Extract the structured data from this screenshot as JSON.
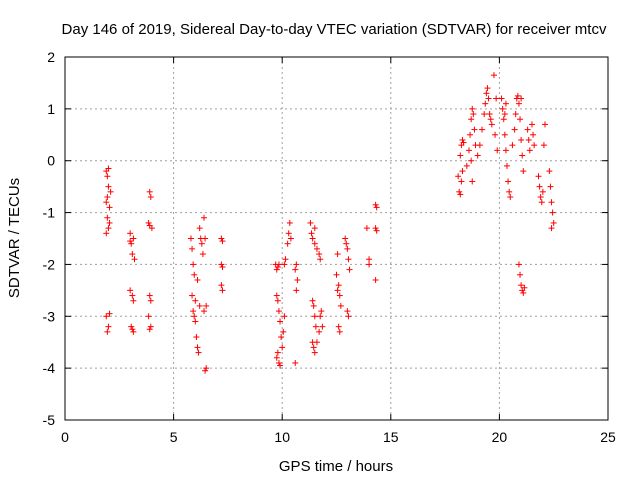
{
  "chart_data": {
    "type": "scatter",
    "title": "Day 146 of 2019, Sidereal Day-to-day VTEC variation (SDTVAR) for receiver mtcv",
    "xlabel": "GPS time / hours",
    "ylabel": "SDTVAR / TECUs",
    "xlim": [
      0,
      25
    ],
    "ylim": [
      -5,
      2
    ],
    "xticks": [
      0,
      5,
      10,
      15,
      20,
      25
    ],
    "yticks": [
      -5,
      -4,
      -3,
      -2,
      -1,
      0,
      1,
      2
    ],
    "grid": true,
    "marker": "+",
    "color": "#ff0000",
    "series": [
      {
        "name": "SDTVAR",
        "points": [
          [
            1.9,
            -0.2
          ],
          [
            1.95,
            -0.3
          ],
          [
            2.0,
            -0.15
          ],
          [
            2.0,
            -0.5
          ],
          [
            1.9,
            -0.8
          ],
          [
            2.05,
            -0.9
          ],
          [
            1.95,
            -1.1
          ],
          [
            2.0,
            -1.3
          ],
          [
            1.9,
            -1.4
          ],
          [
            2.05,
            -1.2
          ],
          [
            2.1,
            -0.6
          ],
          [
            1.95,
            -0.7
          ],
          [
            1.9,
            -3.0
          ],
          [
            2.0,
            -3.2
          ],
          [
            1.95,
            -3.3
          ],
          [
            2.05,
            -2.95
          ],
          [
            3.0,
            -1.4
          ],
          [
            3.05,
            -1.6
          ],
          [
            3.1,
            -1.8
          ],
          [
            3.15,
            -1.5
          ],
          [
            3.2,
            -1.9
          ],
          [
            3.0,
            -1.55
          ],
          [
            3.0,
            -2.5
          ],
          [
            3.1,
            -2.6
          ],
          [
            3.15,
            -2.7
          ],
          [
            3.05,
            -3.2
          ],
          [
            3.15,
            -3.3
          ],
          [
            3.1,
            -3.25
          ],
          [
            3.9,
            -0.6
          ],
          [
            3.95,
            -0.7
          ],
          [
            3.85,
            -1.2
          ],
          [
            4.0,
            -1.3
          ],
          [
            3.9,
            -1.25
          ],
          [
            3.9,
            -2.6
          ],
          [
            3.95,
            -2.7
          ],
          [
            3.85,
            -3.0
          ],
          [
            3.95,
            -3.2
          ],
          [
            3.9,
            -3.25
          ],
          [
            5.8,
            -1.5
          ],
          [
            5.85,
            -1.7
          ],
          [
            5.9,
            -2.0
          ],
          [
            5.95,
            -2.2
          ],
          [
            5.85,
            -2.6
          ],
          [
            5.9,
            -2.9
          ],
          [
            6.0,
            -3.1
          ],
          [
            6.05,
            -3.4
          ],
          [
            6.1,
            -3.6
          ],
          [
            6.15,
            -3.7
          ],
          [
            5.95,
            -3.0
          ],
          [
            6.0,
            -2.7
          ],
          [
            6.2,
            -1.3
          ],
          [
            6.25,
            -1.5
          ],
          [
            6.3,
            -1.6
          ],
          [
            6.35,
            -1.8
          ],
          [
            6.1,
            -2.3
          ],
          [
            6.2,
            -2.8
          ],
          [
            6.4,
            -1.1
          ],
          [
            6.45,
            -1.5
          ],
          [
            6.5,
            -2.8
          ],
          [
            6.4,
            -2.9
          ],
          [
            6.5,
            -4.0
          ],
          [
            6.45,
            -4.05
          ],
          [
            7.2,
            -1.5
          ],
          [
            7.25,
            -1.55
          ],
          [
            7.2,
            -2.0
          ],
          [
            7.25,
            -2.05
          ],
          [
            7.2,
            -2.4
          ],
          [
            7.25,
            -2.5
          ],
          [
            9.7,
            -2.0
          ],
          [
            9.75,
            -2.1
          ],
          [
            9.8,
            -2.05
          ],
          [
            9.85,
            -2.0
          ],
          [
            9.75,
            -2.6
          ],
          [
            9.8,
            -2.7
          ],
          [
            9.85,
            -2.9
          ],
          [
            9.9,
            -3.1
          ],
          [
            9.95,
            -3.4
          ],
          [
            9.8,
            -3.7
          ],
          [
            9.75,
            -3.8
          ],
          [
            9.85,
            -3.9
          ],
          [
            9.9,
            -3.95
          ],
          [
            10.0,
            -3.6
          ],
          [
            10.05,
            -3.3
          ],
          [
            10.1,
            -3.0
          ],
          [
            10.1,
            -2.0
          ],
          [
            10.15,
            -1.9
          ],
          [
            10.25,
            -1.6
          ],
          [
            10.3,
            -1.4
          ],
          [
            10.35,
            -1.2
          ],
          [
            10.4,
            -1.5
          ],
          [
            10.6,
            -2.1
          ],
          [
            10.65,
            -2.0
          ],
          [
            10.7,
            -2.3
          ],
          [
            10.65,
            -2.5
          ],
          [
            10.6,
            -3.9
          ],
          [
            11.3,
            -1.2
          ],
          [
            11.35,
            -1.4
          ],
          [
            11.4,
            -1.5
          ],
          [
            11.5,
            -1.6
          ],
          [
            11.6,
            -1.7
          ],
          [
            11.7,
            -1.8
          ],
          [
            11.75,
            -1.9
          ],
          [
            11.5,
            -1.3
          ],
          [
            11.4,
            -2.7
          ],
          [
            11.45,
            -2.8
          ],
          [
            11.5,
            -3.0
          ],
          [
            11.55,
            -3.2
          ],
          [
            11.4,
            -3.5
          ],
          [
            11.45,
            -3.6
          ],
          [
            11.5,
            -3.7
          ],
          [
            11.6,
            -3.5
          ],
          [
            11.7,
            -3.3
          ],
          [
            11.75,
            -3.0
          ],
          [
            11.8,
            -2.9
          ],
          [
            11.85,
            -3.2
          ],
          [
            12.5,
            -2.2
          ],
          [
            12.55,
            -2.5
          ],
          [
            12.6,
            -2.4
          ],
          [
            12.65,
            -2.6
          ],
          [
            12.7,
            -2.8
          ],
          [
            12.6,
            -3.2
          ],
          [
            12.65,
            -3.3
          ],
          [
            12.55,
            -1.8
          ],
          [
            12.9,
            -1.5
          ],
          [
            12.95,
            -1.6
          ],
          [
            13.0,
            -1.7
          ],
          [
            13.05,
            -1.9
          ],
          [
            13.1,
            -2.1
          ],
          [
            13.0,
            -2.9
          ],
          [
            13.05,
            -3.0
          ],
          [
            13.9,
            -1.3
          ],
          [
            14.0,
            -1.9
          ],
          [
            14.0,
            -2.0
          ],
          [
            14.3,
            -0.85
          ],
          [
            14.35,
            -0.9
          ],
          [
            14.3,
            -1.3
          ],
          [
            14.35,
            -1.35
          ],
          [
            14.3,
            -2.3
          ],
          [
            18.1,
            -0.3
          ],
          [
            18.15,
            -0.6
          ],
          [
            18.2,
            -0.65
          ],
          [
            18.25,
            -0.4
          ],
          [
            18.3,
            -0.2
          ],
          [
            18.2,
            0.1
          ],
          [
            18.25,
            0.3
          ],
          [
            18.3,
            0.4
          ],
          [
            18.35,
            0.35
          ],
          [
            18.5,
            -0.1
          ],
          [
            18.6,
            0.2
          ],
          [
            18.65,
            0.5
          ],
          [
            18.7,
            0.8
          ],
          [
            18.75,
            1.0
          ],
          [
            18.8,
            0.9
          ],
          [
            18.85,
            0.6
          ],
          [
            18.9,
            0.3
          ],
          [
            18.7,
            0.0
          ],
          [
            18.75,
            -0.4
          ],
          [
            19.0,
            0.1
          ],
          [
            19.1,
            0.3
          ],
          [
            19.2,
            0.6
          ],
          [
            19.3,
            0.9
          ],
          [
            19.35,
            1.1
          ],
          [
            19.4,
            1.3
          ],
          [
            19.45,
            1.4
          ],
          [
            19.5,
            1.2
          ],
          [
            19.55,
            0.9
          ],
          [
            19.6,
            0.8
          ],
          [
            19.65,
            0.7
          ],
          [
            19.8,
            0.5
          ],
          [
            19.9,
            0.2
          ],
          [
            19.75,
            1.65
          ],
          [
            19.85,
            1.2
          ],
          [
            20.1,
            1.2
          ],
          [
            20.15,
            1.0
          ],
          [
            20.2,
            0.8
          ],
          [
            20.25,
            0.5
          ],
          [
            20.3,
            0.2
          ],
          [
            20.35,
            -0.1
          ],
          [
            20.4,
            -0.4
          ],
          [
            20.45,
            -0.6
          ],
          [
            20.5,
            -0.7
          ],
          [
            20.3,
            1.1
          ],
          [
            20.25,
            0.9
          ],
          [
            20.6,
            0.3
          ],
          [
            20.7,
            0.6
          ],
          [
            20.75,
            0.9
          ],
          [
            20.8,
            1.2
          ],
          [
            20.85,
            1.25
          ],
          [
            20.9,
            1.1
          ],
          [
            20.95,
            0.8
          ],
          [
            21.0,
            0.4
          ],
          [
            21.05,
            0.1
          ],
          [
            21.1,
            -0.2
          ],
          [
            21.0,
            1.2
          ],
          [
            20.9,
            -2.0
          ],
          [
            20.95,
            -2.2
          ],
          [
            21.0,
            -2.4
          ],
          [
            21.05,
            -2.5
          ],
          [
            21.1,
            -2.55
          ],
          [
            21.15,
            -2.45
          ],
          [
            21.3,
            0.6
          ],
          [
            21.35,
            0.4
          ],
          [
            21.4,
            0.2
          ],
          [
            21.5,
            0.7
          ],
          [
            21.55,
            0.5
          ],
          [
            21.6,
            0.3
          ],
          [
            21.8,
            -0.3
          ],
          [
            21.85,
            -0.5
          ],
          [
            21.9,
            -0.7
          ],
          [
            21.95,
            -0.8
          ],
          [
            22.0,
            -0.6
          ],
          [
            22.05,
            0.3
          ],
          [
            22.1,
            0.7
          ],
          [
            22.3,
            -0.2
          ],
          [
            22.35,
            -0.5
          ],
          [
            22.4,
            -0.8
          ],
          [
            22.45,
            -1.0
          ],
          [
            22.5,
            -1.2
          ],
          [
            22.4,
            -1.3
          ]
        ]
      }
    ]
  }
}
